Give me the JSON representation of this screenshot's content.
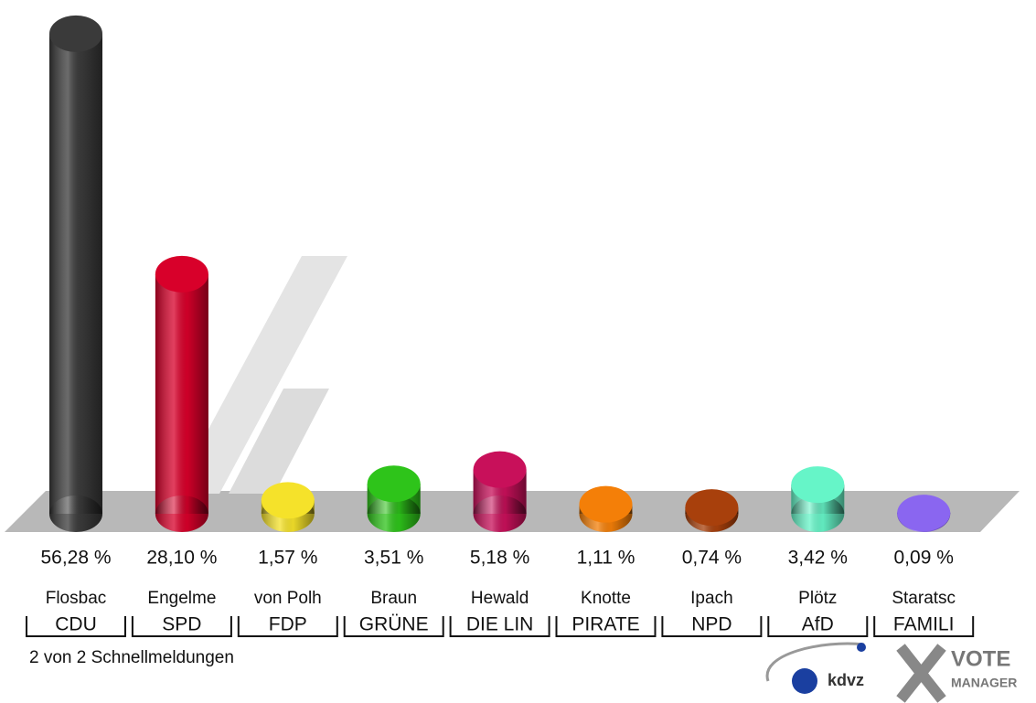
{
  "chart_data": {
    "type": "bar",
    "categories": [
      "Flosbac",
      "Engelme",
      "von Polh",
      "Braun",
      "Hewald",
      "Knotte",
      "Ipach",
      "Plötz",
      "Staratsc"
    ],
    "parties": [
      "CDU",
      "SPD",
      "FDP",
      "GRÜNE",
      "DIE LIN",
      "PIRATE",
      "NPD",
      "AfD",
      "FAMILI"
    ],
    "values": [
      56.28,
      28.1,
      1.57,
      3.51,
      5.18,
      1.11,
      0.74,
      3.42,
      0.09
    ],
    "value_labels": [
      "56,28 %",
      "28,10 %",
      "1,57 %",
      "3,51 %",
      "5,18 %",
      "1,11 %",
      "0,74 %",
      "3,42 %",
      "0,09 %"
    ],
    "colors": [
      "#3a3a3a",
      "#d8002a",
      "#f5e22a",
      "#2ec41a",
      "#c8105a",
      "#f47f08",
      "#a8400c",
      "#66f5c8",
      "#8a66f0"
    ],
    "footer": "2 von 2 Schnellmeldungen",
    "logos": [
      "kdvz",
      "VOTE",
      "MANAGER"
    ]
  }
}
